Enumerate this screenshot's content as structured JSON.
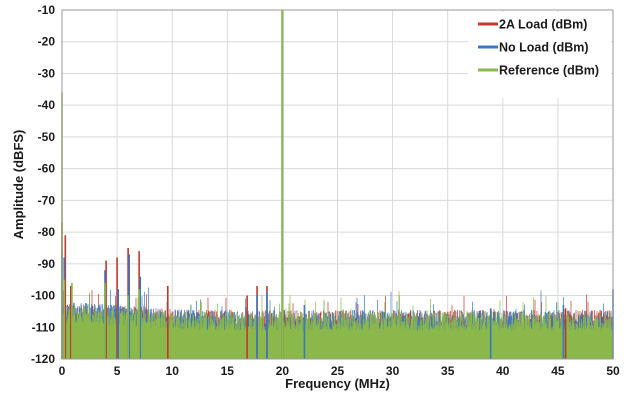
{
  "chart_data": {
    "type": "line",
    "xlabel": "Frequency (MHz)",
    "ylabel": "Amplitude (dBFS)",
    "xlim": [
      0,
      50
    ],
    "ylim": [
      -120,
      -10
    ],
    "xticks": [
      0,
      5,
      10,
      15,
      20,
      25,
      30,
      35,
      40,
      45,
      50
    ],
    "yticks": [
      -10,
      -20,
      -30,
      -40,
      -50,
      -60,
      -70,
      -80,
      -90,
      -100,
      -110,
      -120
    ],
    "grid": true,
    "legend_position": "top-right",
    "noise_floor_dbfs": -109,
    "series": [
      {
        "name": "2A Load (dBm)",
        "color": "#c0392b",
        "spurs": [
          {
            "x": 0,
            "y": -77
          },
          {
            "x": 0.3,
            "y": -81
          },
          {
            "x": 0.8,
            "y": -97
          },
          {
            "x": 4.0,
            "y": -89
          },
          {
            "x": 5.0,
            "y": -88
          },
          {
            "x": 6.0,
            "y": -85
          },
          {
            "x": 7.0,
            "y": -86
          },
          {
            "x": 9.6,
            "y": -97
          },
          {
            "x": 16.8,
            "y": -100
          },
          {
            "x": 17.7,
            "y": -97
          },
          {
            "x": 18.6,
            "y": -97
          },
          {
            "x": 20.0,
            "y": -10
          },
          {
            "x": 45.7,
            "y": -104
          }
        ]
      },
      {
        "name": "No Load (dBm)",
        "color": "#3a78c2",
        "spurs": [
          {
            "x": 0,
            "y": -86
          },
          {
            "x": 0.2,
            "y": -88
          },
          {
            "x": 3.9,
            "y": -92
          },
          {
            "x": 5.1,
            "y": -98
          },
          {
            "x": 6.1,
            "y": -87
          },
          {
            "x": 7.1,
            "y": -94
          },
          {
            "x": 17.7,
            "y": -100
          },
          {
            "x": 18.6,
            "y": -99
          },
          {
            "x": 20.0,
            "y": -10
          },
          {
            "x": 22.0,
            "y": -103
          },
          {
            "x": 38.9,
            "y": -104
          },
          {
            "x": 45.5,
            "y": -103
          },
          {
            "x": 50.0,
            "y": -98
          }
        ]
      },
      {
        "name": "Reference (dBm)",
        "color": "#8ab84a",
        "spurs": [
          {
            "x": 0,
            "y": -36
          },
          {
            "x": 0.2,
            "y": -95
          },
          {
            "x": 0.9,
            "y": -96
          },
          {
            "x": 3.9,
            "y": -96
          },
          {
            "x": 6.0,
            "y": -100
          },
          {
            "x": 7.0,
            "y": -98
          },
          {
            "x": 12.6,
            "y": -102
          },
          {
            "x": 20.0,
            "y": -10
          }
        ]
      }
    ]
  }
}
